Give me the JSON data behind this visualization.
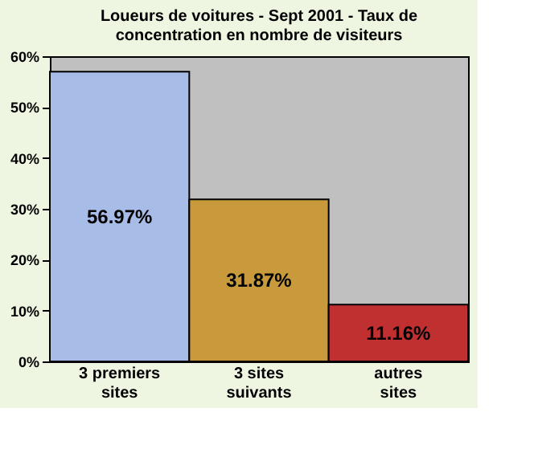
{
  "chart_data": {
    "type": "bar",
    "title": "Loueurs de voitures  - Sept 2001 - Taux de concentration en nombre de visiteurs",
    "categories": [
      "3 premiers sites",
      "3 sites suivants",
      "autres sites"
    ],
    "values": [
      56.97,
      31.87,
      11.16
    ],
    "colors": [
      "#a8bce8",
      "#c89a3c",
      "#c03030"
    ],
    "value_labels": [
      "56.97%",
      "31.87%",
      "11.16%"
    ],
    "ylim": [
      0,
      60
    ],
    "yticks": [
      {
        "value": 0,
        "label": "0%"
      },
      {
        "value": 10,
        "label": "10%"
      },
      {
        "value": 20,
        "label": "20%"
      },
      {
        "value": 30,
        "label": "30%"
      },
      {
        "value": 40,
        "label": "40%"
      },
      {
        "value": 50,
        "label": "50%"
      },
      {
        "value": 60,
        "label": "60%"
      }
    ],
    "grid": false
  }
}
